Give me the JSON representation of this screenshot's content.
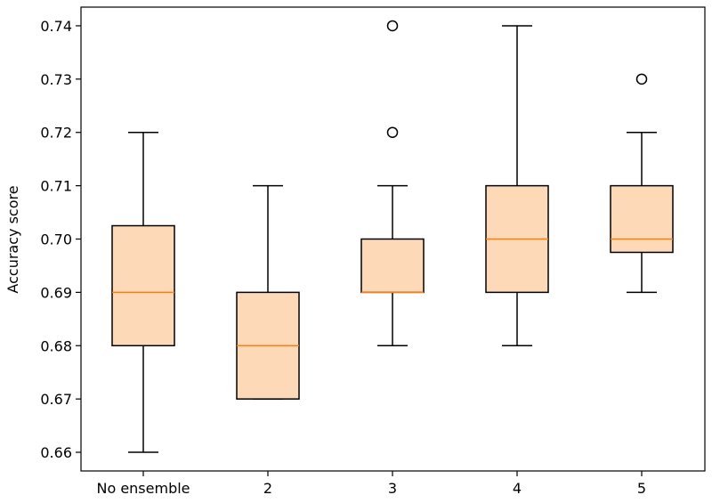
{
  "chart_data": {
    "type": "box",
    "title": "",
    "xlabel": "",
    "ylabel": "Accuracy score",
    "ylim": [
      0.6565,
      0.7435
    ],
    "yticks": [
      0.66,
      0.67,
      0.68,
      0.69,
      0.7,
      0.71,
      0.72,
      0.73,
      0.74
    ],
    "ytick_labels": [
      "0.66",
      "0.67",
      "0.68",
      "0.69",
      "0.70",
      "0.71",
      "0.72",
      "0.73",
      "0.74"
    ],
    "categories": [
      "No ensemble",
      "2",
      "3",
      "4",
      "5"
    ],
    "boxes": [
      {
        "label": "No ensemble",
        "whisker_low": 0.66,
        "q1": 0.68,
        "median": 0.69,
        "q3": 0.7025,
        "whisker_high": 0.72,
        "outliers": []
      },
      {
        "label": "2",
        "whisker_low": 0.67,
        "q1": 0.67,
        "median": 0.68,
        "q3": 0.69,
        "whisker_high": 0.71,
        "outliers": []
      },
      {
        "label": "3",
        "whisker_low": 0.68,
        "q1": 0.69,
        "median": 0.69,
        "q3": 0.7,
        "whisker_high": 0.71,
        "outliers": [
          0.72,
          0.74
        ]
      },
      {
        "label": "4",
        "whisker_low": 0.68,
        "q1": 0.69,
        "median": 0.7,
        "q3": 0.71,
        "whisker_high": 0.74,
        "outliers": []
      },
      {
        "label": "5",
        "whisker_low": 0.69,
        "q1": 0.6975,
        "median": 0.7,
        "q3": 0.71,
        "whisker_high": 0.72,
        "outliers": [
          0.73
        ]
      }
    ],
    "grid": false,
    "colors": {
      "box_fill": "#fdd9b8",
      "median": "#ff7f0e",
      "line": "#000000"
    }
  }
}
